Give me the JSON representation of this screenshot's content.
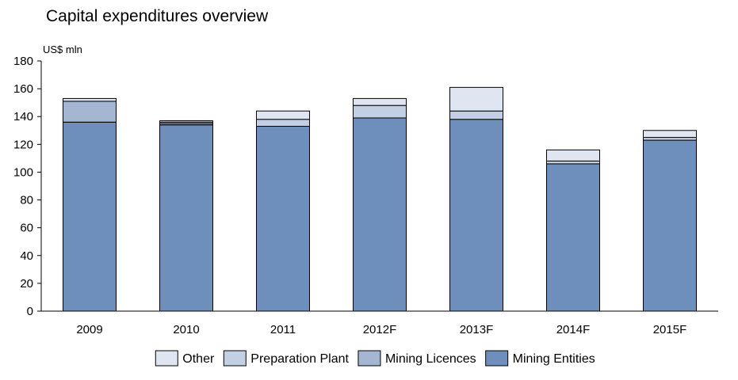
{
  "chart_data": {
    "type": "bar",
    "stacked": true,
    "title": "Capital expenditures overview",
    "ylabel": "US$ mln",
    "xlabel": "",
    "ylim": [
      0,
      180
    ],
    "yticks": [
      0,
      20,
      40,
      60,
      80,
      100,
      120,
      140,
      160,
      180
    ],
    "grid": false,
    "legend_position": "bottom",
    "categories": [
      "2009",
      "2010",
      "2011",
      "2012F",
      "2013F",
      "2014F",
      "2015F"
    ],
    "series": [
      {
        "name": "Mining Entities",
        "color": "#6e8ebb",
        "values": [
          136,
          134,
          133,
          139,
          138,
          106,
          123
        ]
      },
      {
        "name": "Mining Licences",
        "color": "#a4b6d2",
        "values": [
          15,
          1,
          0,
          0,
          0,
          0,
          0
        ]
      },
      {
        "name": "Preparation Plant",
        "color": "#c3cfe3",
        "values": [
          0,
          1,
          5,
          9,
          6,
          2,
          2
        ]
      },
      {
        "name": "Other",
        "color": "#e0e6f1",
        "values": [
          2,
          1,
          6,
          5,
          17,
          8,
          5
        ]
      }
    ],
    "legend_order": [
      "Other",
      "Preparation Plant",
      "Mining Licences",
      "Mining Entities"
    ]
  }
}
